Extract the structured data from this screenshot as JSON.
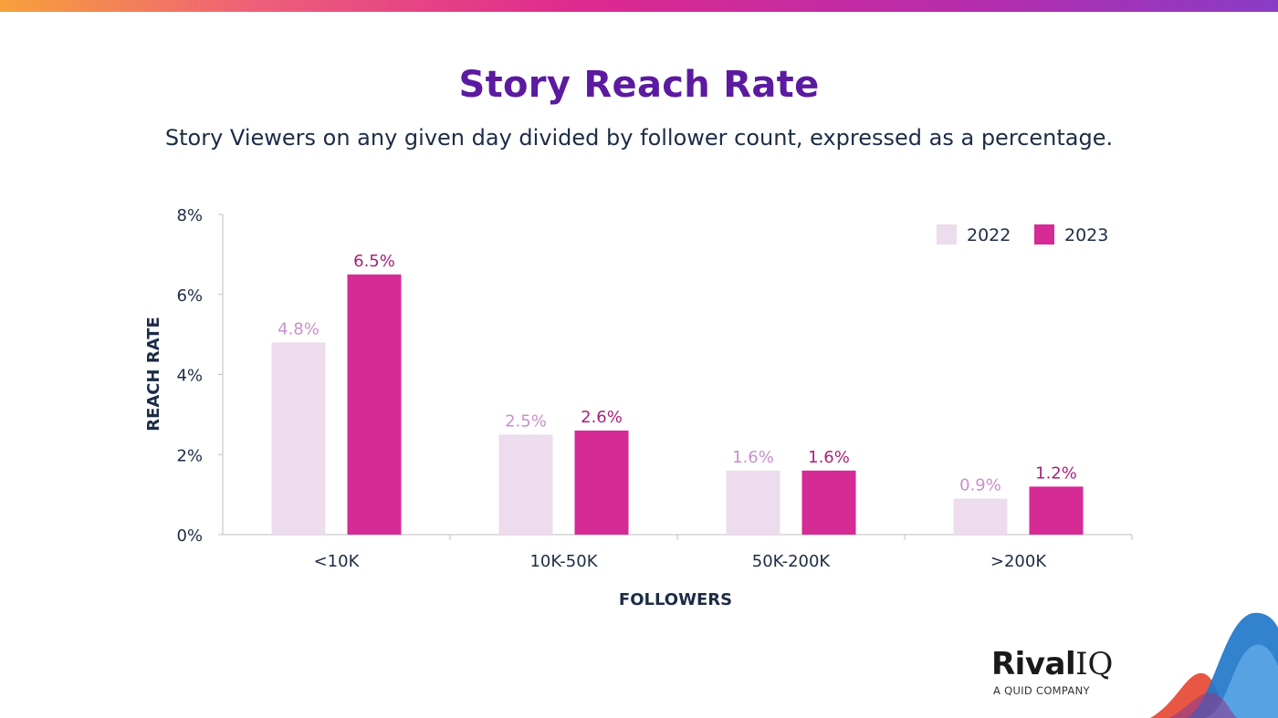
{
  "header": {
    "title": "Story Reach Rate",
    "subtitle": "Story Viewers on any given day divided by follower count, expressed as a percentage."
  },
  "chart_data": {
    "type": "bar",
    "title": "Story Reach Rate",
    "xlabel": "FOLLOWERS",
    "ylabel": "REACH RATE",
    "categories": [
      "<10K",
      "10K-50K",
      "50K-200K",
      ">200K"
    ],
    "ylim": [
      0,
      8
    ],
    "yticks": [
      0,
      2,
      4,
      6,
      8
    ],
    "ytick_labels": [
      "0%",
      "2%",
      "4%",
      "6%",
      "8%"
    ],
    "legend_position": "top-right",
    "grid": false,
    "series": [
      {
        "name": "2022",
        "color": "#ecdcee",
        "label_color": "#c98fcd",
        "values": [
          4.8,
          2.5,
          1.6,
          0.9
        ],
        "labels": [
          "4.8%",
          "2.5%",
          "1.6%",
          "0.9%"
        ]
      },
      {
        "name": "2023",
        "color": "#d62a94",
        "label_color": "#a8217a",
        "values": [
          6.5,
          2.6,
          1.6,
          1.2
        ],
        "labels": [
          "6.5%",
          "2.6%",
          "1.6%",
          "1.2%"
        ]
      }
    ]
  },
  "brand": {
    "name_main": "Rival",
    "name_suffix": "IQ",
    "tagline": "A QUID COMPANY"
  }
}
